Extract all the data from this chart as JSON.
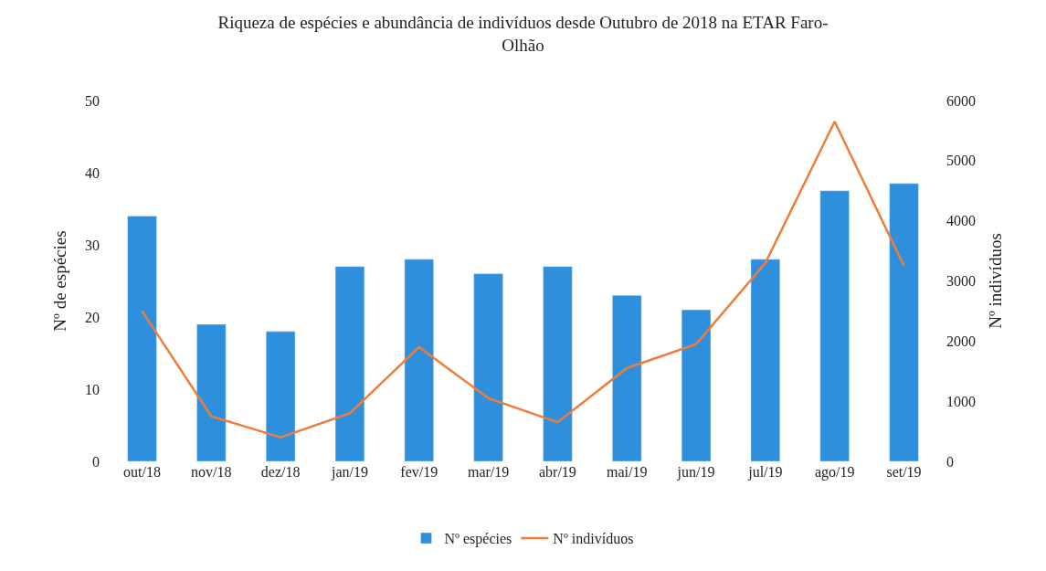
{
  "chart_data": {
    "type": "bar",
    "title": "Riqueza de espécies e abundância de indivíduos desde Outubro de 2018 na ETAR Faro-Olhão",
    "ylabel": "Nº de espécies",
    "y2label": "Nº indivíduos",
    "categories": [
      "out/18",
      "nov/18",
      "dez/18",
      "jan/19",
      "fev/19",
      "mar/19",
      "abr/19",
      "mai/19",
      "jun/19",
      "jul/19",
      "ago/19",
      "set/19"
    ],
    "series": [
      {
        "name": "Nº espécies",
        "color": "#2e8fdc",
        "values": [
          34,
          19,
          18,
          27,
          28,
          26,
          27,
          23,
          21,
          28,
          37.5,
          38.5
        ]
      },
      {
        "name": "Nº indivíduos",
        "type": "line",
        "axis": "y2",
        "color": "#ee7d3b",
        "values": [
          2500,
          750,
          400,
          800,
          1900,
          1050,
          650,
          1550,
          1950,
          3300,
          5650,
          3250
        ]
      }
    ],
    "ylim": [
      0,
      50
    ],
    "yticks": [
      0,
      10,
      20,
      30,
      40,
      50
    ],
    "y2lim": [
      0,
      6000
    ],
    "y2ticks": [
      0,
      1000,
      2000,
      3000,
      4000,
      5000,
      6000
    ],
    "legend": "bottom",
    "marker": "none"
  }
}
